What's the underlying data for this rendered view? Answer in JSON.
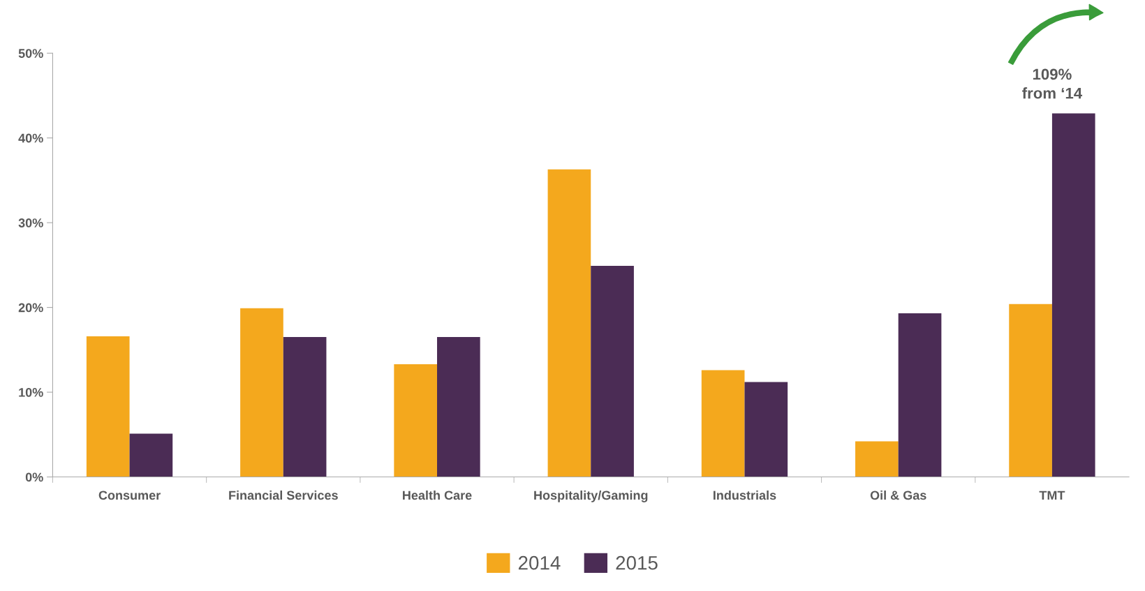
{
  "chart_data": {
    "type": "bar",
    "categories": [
      "Consumer",
      "Financial Services",
      "Health Care",
      "Hospitality/Gaming",
      "Industrials",
      "Oil & Gas",
      "TMT"
    ],
    "series": [
      {
        "name": "2014",
        "color": "#f4a81d",
        "values": [
          16.6,
          19.9,
          13.3,
          36.3,
          12.6,
          4.2,
          20.4
        ]
      },
      {
        "name": "2015",
        "color": "#4b2c55",
        "values": [
          5.1,
          16.5,
          16.5,
          24.9,
          11.2,
          19.3,
          42.9
        ]
      }
    ],
    "ylim": [
      0,
      50
    ],
    "yticks": [
      {
        "value": 0,
        "label": "0%"
      },
      {
        "value": 10,
        "label": "10%"
      },
      {
        "value": 20,
        "label": "20%"
      },
      {
        "value": 30,
        "label": "30%"
      },
      {
        "value": 40,
        "label": "40%"
      },
      {
        "value": 50,
        "label": "50%"
      }
    ],
    "annotations": [
      {
        "text": "109%\nfrom ‘14",
        "x": "TMT",
        "y": 42.9
      }
    ],
    "grid": false,
    "legend": "bottom"
  }
}
